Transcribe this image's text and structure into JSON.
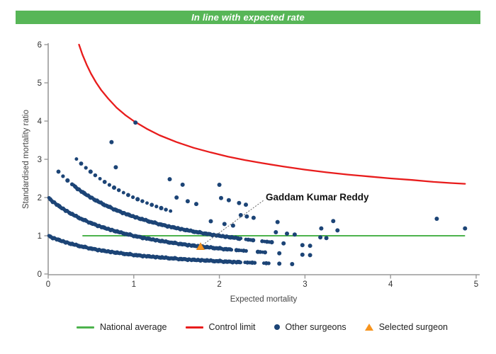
{
  "banner": {
    "text": "In line with expected rate",
    "bg_color": "#57b657"
  },
  "legend": {
    "items": [
      {
        "label": "National average",
        "marker": "line",
        "color": "#4db34d"
      },
      {
        "label": "Control limit",
        "marker": "line",
        "color": "#e81c1c"
      },
      {
        "label": "Other surgeons",
        "marker": "dot",
        "color": "#1c4476"
      },
      {
        "label": "Selected surgeon",
        "marker": "triangle",
        "color": "#f7941e"
      }
    ]
  },
  "chart_data": {
    "type": "scatter",
    "title": "In line with expected rate",
    "xlabel": "Expected mortality",
    "ylabel": "Standardised mortality ratio",
    "xlim": [
      0,
      5
    ],
    "ylim": [
      0,
      6
    ],
    "x_ticks": [
      0,
      1,
      2,
      3,
      4,
      5
    ],
    "y_ticks": [
      0,
      1,
      2,
      3,
      4,
      5,
      6
    ],
    "grid": false,
    "legend_position": "bottom",
    "national_average": {
      "label": "National average",
      "y": 1,
      "x_start": 0.4,
      "x_end": 4.87,
      "color": "#4db34d"
    },
    "control_limit": {
      "label": "Control limit",
      "color": "#e81c1c",
      "formula": "y = 1 + 3/sqrt(x)",
      "points": [
        [
          0.36,
          6.0
        ],
        [
          0.4,
          5.74
        ],
        [
          0.45,
          5.47
        ],
        [
          0.5,
          5.24
        ],
        [
          0.56,
          5.01
        ],
        [
          0.62,
          4.81
        ],
        [
          0.7,
          4.59
        ],
        [
          0.8,
          4.35
        ],
        [
          0.9,
          4.16
        ],
        [
          1.0,
          4.0
        ],
        [
          1.15,
          3.8
        ],
        [
          1.3,
          3.63
        ],
        [
          1.5,
          3.45
        ],
        [
          1.7,
          3.3
        ],
        [
          1.9,
          3.18
        ],
        [
          2.1,
          3.07
        ],
        [
          2.3,
          2.98
        ],
        [
          2.5,
          2.9
        ],
        [
          2.75,
          2.81
        ],
        [
          3.0,
          2.73
        ],
        [
          3.25,
          2.66
        ],
        [
          3.5,
          2.6
        ],
        [
          3.75,
          2.55
        ],
        [
          4.0,
          2.5
        ],
        [
          4.25,
          2.46
        ],
        [
          4.5,
          2.41
        ],
        [
          4.7,
          2.38
        ],
        [
          4.87,
          2.36
        ]
      ]
    },
    "other_surgeons": {
      "label": "Other surgeons",
      "color": "#1c4476",
      "curve_family": "smr = deaths / (1 + expected)",
      "bands": [
        {
          "deaths": 1,
          "segments": [
            [
              0.01,
              2.25,
              0.015
            ]
          ],
          "dash_segments": [
            [
              2.3,
              2.42,
              0.028
            ],
            [
              2.52,
              2.58,
              0.028
            ]
          ],
          "extra_x": [
            2.7,
            2.85
          ]
        },
        {
          "deaths": 2,
          "segments": [
            [
              0.01,
              2.15,
              0.015
            ]
          ],
          "dash_segments": [
            [
              2.2,
              2.32,
              0.028
            ],
            [
              2.45,
              2.55,
              0.028
            ]
          ],
          "extra_x": [
            2.7,
            2.97,
            3.06
          ]
        },
        {
          "deaths": 3,
          "segments": [
            [
              0.3,
              2.26,
              0.015
            ]
          ],
          "dash_segments": [
            [
              0.12,
              0.28,
              0.053
            ],
            [
              2.31,
              2.4,
              0.028
            ],
            [
              2.5,
              2.62,
              0.028
            ]
          ],
          "extra_x": [
            2.75,
            2.97,
            3.06
          ]
        },
        {
          "deaths": 4,
          "segments": [],
          "dash_segments": [
            [
              0.33,
              1.45,
              0.055
            ]
          ],
          "extra_x": [
            1.9,
            2.06,
            2.16,
            2.66,
            2.79,
            2.88,
            3.18,
            3.25
          ]
        },
        {
          "deaths": 5,
          "segments": [],
          "dash_segments": [],
          "extra_x": [
            0.79,
            1.5,
            1.63,
            1.73,
            2.25,
            2.32,
            2.4,
            2.68,
            3.19,
            3.38
          ]
        },
        {
          "deaths": 6,
          "segments": [],
          "dash_segments": [],
          "extra_x": [
            0.74,
            1.42,
            1.57,
            2.02,
            2.11,
            2.23,
            2.31,
            3.33
          ]
        },
        {
          "deaths": 7,
          "segments": [],
          "dash_segments": [],
          "extra_x": [
            2.0,
            4.87
          ]
        },
        {
          "deaths": 8,
          "segments": [],
          "dash_segments": [],
          "extra_x": [
            1.02,
            4.54
          ]
        }
      ]
    },
    "selected_surgeon": {
      "label": "Selected surgeon",
      "name": "Gaddam Kumar Reddy",
      "x": 1.78,
      "y": 0.72,
      "color": "#f7941e"
    },
    "axis_color": "#999999",
    "tick_text_color": "#333333"
  }
}
